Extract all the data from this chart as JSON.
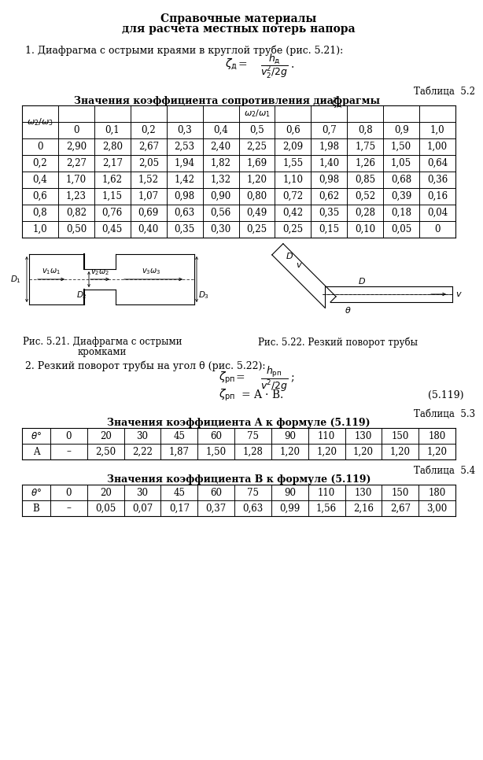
{
  "title_line1": "Справочные материалы",
  "title_line2": "для расчета местных потерь напора",
  "section1_text": "1. Диафрагма с острыми краями в круглой трубе (рис. 5.21):",
  "table52_label": "Таблица  5.2",
  "table52_title": "Значения коэффициента сопротивления диафрагмы",
  "table52_zeta": "ζд",
  "table52_cols": [
    "0",
    "0,1",
    "0,2",
    "0,3",
    "0,4",
    "0,5",
    "0,6",
    "0,7",
    "0,8",
    "0,9",
    "1,0"
  ],
  "table52_rows": [
    "0",
    "0,2",
    "0,4",
    "0,6",
    "0,8",
    "1,0"
  ],
  "table52_data": [
    [
      "2,90",
      "2,80",
      "2,67",
      "2,53",
      "2,40",
      "2,25",
      "2,09",
      "1,98",
      "1,75",
      "1,50",
      "1,00"
    ],
    [
      "2,27",
      "2,17",
      "2,05",
      "1,94",
      "1,82",
      "1,69",
      "1,55",
      "1,40",
      "1,26",
      "1,05",
      "0,64"
    ],
    [
      "1,70",
      "1,62",
      "1,52",
      "1,42",
      "1,32",
      "1,20",
      "1,10",
      "0,98",
      "0,85",
      "0,68",
      "0,36"
    ],
    [
      "1,23",
      "1,15",
      "1,07",
      "0,98",
      "0,90",
      "0,80",
      "0,72",
      "0,62",
      "0,52",
      "0,39",
      "0,16"
    ],
    [
      "0,82",
      "0,76",
      "0,69",
      "0,63",
      "0,56",
      "0,49",
      "0,42",
      "0,35",
      "0,28",
      "0,18",
      "0,04"
    ],
    [
      "0,50",
      "0,45",
      "0,40",
      "0,35",
      "0,30",
      "0,25",
      "0,25",
      "0,15",
      "0,10",
      "0,05",
      "0"
    ]
  ],
  "fig521_caption_line1": "Рис. 5.21. Диафрагма с острыми",
  "fig521_caption_line2": "кромками",
  "fig522_caption": "Рис. 5.22. Резкий поворот трубы",
  "section2_text": "2. Резкий поворот трубы на угол θ (рис. 5.22):",
  "eq_number": "(5.119)",
  "table53_label": "Таблица  5.3",
  "table53_title": "Значения коэффициента A к формуле (5.119)",
  "table53_cols": [
    "0",
    "20",
    "30",
    "45",
    "60",
    "75",
    "90",
    "110",
    "130",
    "150",
    "180"
  ],
  "table53_rowA": [
    "–",
    "2,50",
    "2,22",
    "1,87",
    "1,50",
    "1,28",
    "1,20",
    "1,20",
    "1,20",
    "1,20",
    "1,20"
  ],
  "table54_label": "Таблица  5.4",
  "table54_title": "Значения коэффициента B к формуле (5.119)",
  "table54_cols": [
    "0",
    "20",
    "30",
    "45",
    "60",
    "75",
    "90",
    "110",
    "130",
    "150",
    "180"
  ],
  "table54_rowB": [
    "–",
    "0,05",
    "0,07",
    "0,17",
    "0,37",
    "0,63",
    "0,99",
    "1,56",
    "2,16",
    "2,67",
    "3,00"
  ]
}
